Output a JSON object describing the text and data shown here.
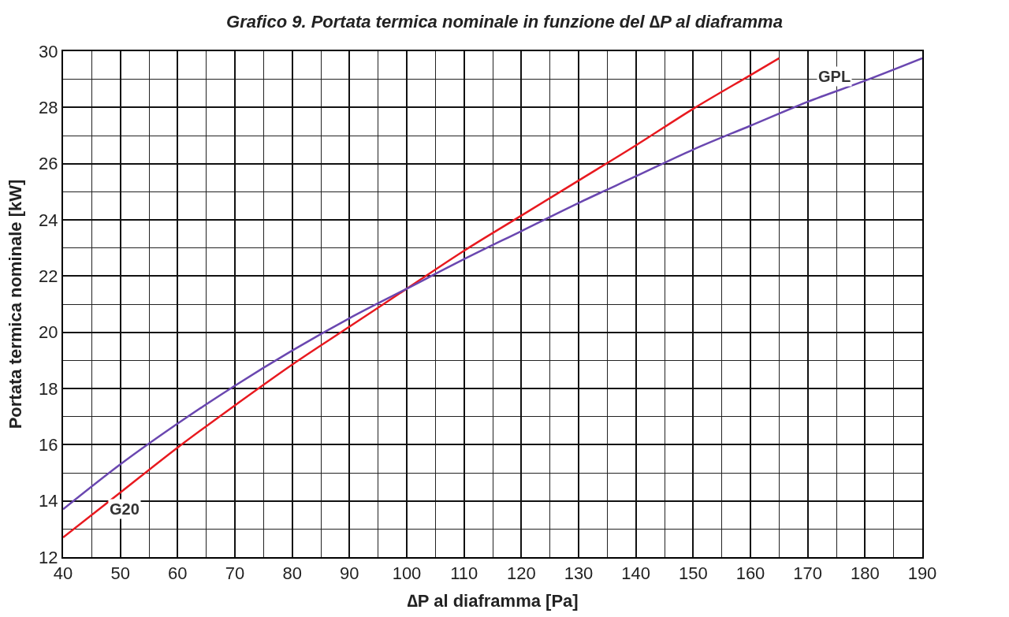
{
  "chart_data": {
    "type": "line",
    "title": "Grafico 9. Portata termica nominale in funzione del ∆P al diaframma",
    "xlabel": "∆P al diaframma [Pa]",
    "ylabel": "Portata termica nominale [kW]",
    "xlim": [
      40,
      190
    ],
    "xticks": [
      40,
      50,
      60,
      70,
      80,
      90,
      100,
      110,
      120,
      130,
      140,
      150,
      160,
      170,
      180,
      190
    ],
    "ylim": [
      12,
      30
    ],
    "yticks": [
      12,
      14,
      16,
      18,
      20,
      22,
      24,
      26,
      28,
      30
    ],
    "grid": true,
    "legend": false,
    "marker": "none",
    "line_style": "solid",
    "series": [
      {
        "color": "#e8191f",
        "x": [
          40,
          50,
          60,
          70,
          80,
          90,
          100,
          110,
          120,
          130,
          140,
          150,
          160,
          165
        ],
        "values": [
          12.7,
          14.3,
          15.9,
          17.4,
          18.85,
          20.2,
          21.55,
          22.9,
          24.15,
          25.4,
          26.65,
          27.95,
          29.15,
          29.75
        ]
      },
      {
        "color": "#6a47b0",
        "x": [
          40,
          50,
          60,
          70,
          80,
          90,
          100,
          110,
          120,
          130,
          140,
          150,
          160,
          170,
          180,
          190
        ],
        "values": [
          13.7,
          15.3,
          16.75,
          18.1,
          19.35,
          20.5,
          21.55,
          22.6,
          23.6,
          24.6,
          25.55,
          26.5,
          27.35,
          28.2,
          28.95,
          29.75
        ]
      }
    ],
    "annotations": [
      {
        "text": "G20",
        "x": 50.7,
        "y": 13.7
      },
      {
        "text": "GPL",
        "x": 174.7,
        "y": 29.1
      }
    ]
  }
}
